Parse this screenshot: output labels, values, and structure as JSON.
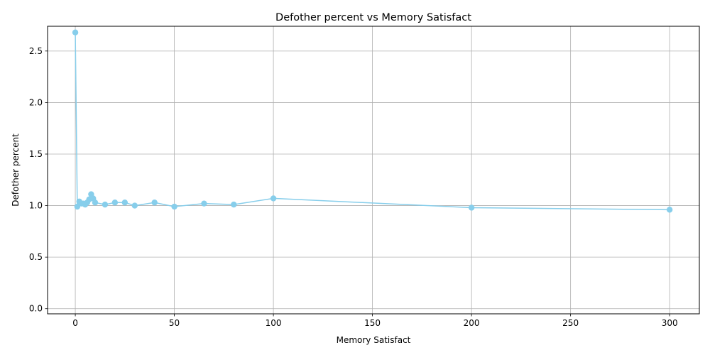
{
  "chart_data": {
    "type": "line",
    "title": "Defother percent vs Memory Satisfact",
    "xlabel": "Memory Satisfact",
    "ylabel": "Defother percent",
    "xlim": [
      -14,
      315
    ],
    "ylim": [
      -0.05,
      2.74
    ],
    "xticks": [
      0,
      50,
      100,
      150,
      200,
      250,
      300
    ],
    "yticks": [
      0.0,
      0.5,
      1.0,
      1.5,
      2.0,
      2.5
    ],
    "xtick_labels": [
      "0",
      "50",
      "100",
      "150",
      "200",
      "250",
      "300"
    ],
    "ytick_labels": [
      "0.0",
      "0.5",
      "1.0",
      "1.5",
      "2.0",
      "2.5"
    ],
    "grid": true,
    "legend": "none",
    "color": "#87ceeb",
    "marker": "circle",
    "series": [
      {
        "x": [
          0,
          1,
          2,
          3,
          4,
          5,
          6,
          7,
          8,
          9,
          10,
          15,
          20,
          25,
          30,
          40,
          50,
          65,
          80,
          100,
          200,
          300
        ],
        "y": [
          2.68,
          0.99,
          1.04,
          1.02,
          1.02,
          1.01,
          1.03,
          1.06,
          1.11,
          1.07,
          1.03,
          1.01,
          1.03,
          1.03,
          1.0,
          1.03,
          0.99,
          1.02,
          1.01,
          1.07,
          0.98,
          0.96
        ]
      }
    ]
  }
}
